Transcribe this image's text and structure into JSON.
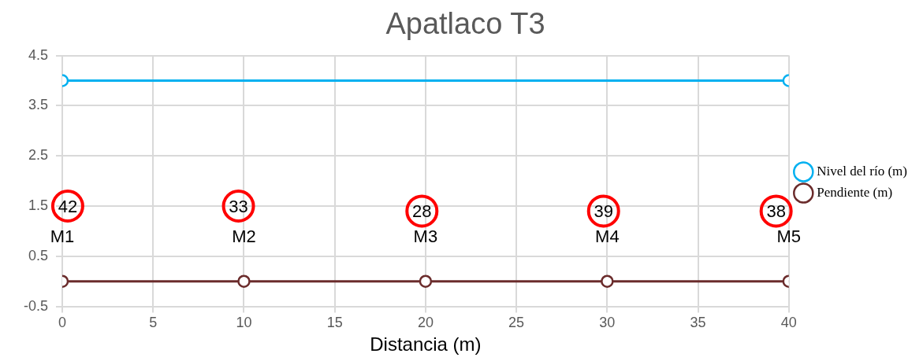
{
  "chart_data": {
    "type": "line",
    "title": "Apatlaco T3",
    "xlabel": "Distancia (m)",
    "xlim": [
      0,
      40
    ],
    "xticks": [
      0,
      5,
      10,
      15,
      20,
      25,
      30,
      35,
      40
    ],
    "ylim": [
      -0.5,
      4.5
    ],
    "yticks": [
      -0.5,
      0.5,
      1.5,
      2.5,
      3.5,
      4.5
    ],
    "grid": true,
    "legend": "right",
    "marker": "circle",
    "line_style": "solid",
    "series": [
      {
        "name": "Nivel del río (m)",
        "color": "#00b0f0",
        "x": [
          0,
          40
        ],
        "values": [
          4,
          4
        ]
      },
      {
        "name": "Pendiente (m)",
        "color": "#6b2c2c",
        "x": [
          0,
          10,
          20,
          30,
          40
        ],
        "values": [
          0,
          0,
          0,
          0,
          0
        ]
      }
    ],
    "annotations": [
      {
        "text": "42",
        "x": 0.3,
        "y": 1.5
      },
      {
        "text": "M1",
        "x": 0,
        "y": 0
      },
      {
        "text": "33",
        "x": 9.7,
        "y": 1.5
      },
      {
        "text": "M2",
        "x": 10,
        "y": 0
      },
      {
        "text": "28",
        "x": 19.8,
        "y": 1.4
      },
      {
        "text": "M3",
        "x": 20,
        "y": 0
      },
      {
        "text": "39",
        "x": 29.8,
        "y": 1.4
      },
      {
        "text": "M4",
        "x": 30,
        "y": 0
      },
      {
        "text": "38",
        "x": 39.3,
        "y": 1.4
      },
      {
        "text": "M5",
        "x": 40,
        "y": 0
      }
    ]
  }
}
